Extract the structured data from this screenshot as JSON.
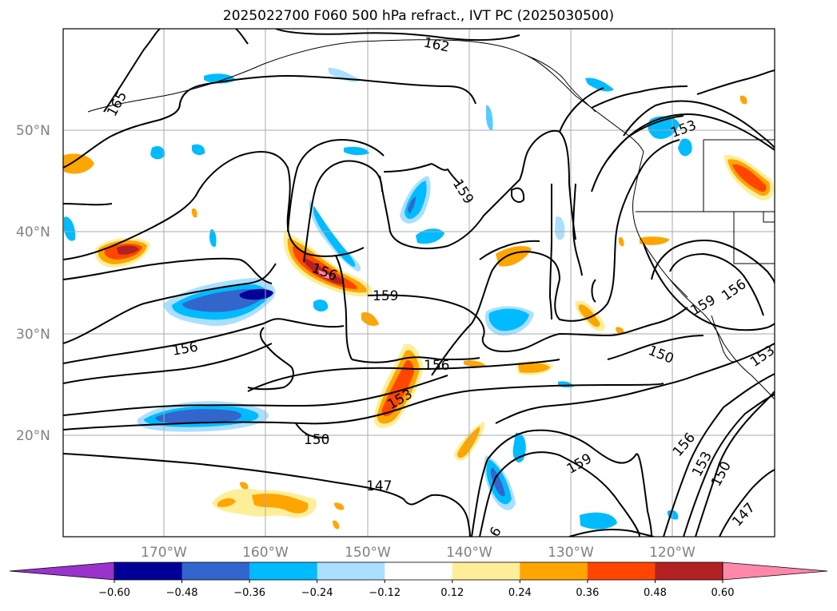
{
  "title": "2025022700 F060 500 hPa refract., IVT PC (2025030500)",
  "map": {
    "lat_labels": [
      "50°N",
      "40°N",
      "30°N",
      "20°N"
    ],
    "lon_labels": [
      "170°W",
      "160°W",
      "150°W",
      "140°W",
      "130°W",
      "120°W"
    ],
    "contour_labels": [
      {
        "text": "162"
      },
      {
        "text": "165"
      },
      {
        "text": "159"
      },
      {
        "text": "153"
      },
      {
        "text": "156"
      },
      {
        "text": "159"
      },
      {
        "text": "156"
      },
      {
        "text": "156"
      },
      {
        "text": "153"
      },
      {
        "text": "150"
      },
      {
        "text": "159"
      },
      {
        "text": "156"
      },
      {
        "text": "150"
      },
      {
        "text": "147"
      },
      {
        "text": "159"
      },
      {
        "text": "156"
      },
      {
        "text": "153"
      },
      {
        "text": "150"
      },
      {
        "text": "147"
      },
      {
        "text": "153"
      },
      {
        "text": "6"
      }
    ]
  },
  "colorbar": {
    "ticks": [
      "−0.60",
      "−0.48",
      "−0.36",
      "−0.24",
      "−0.12",
      "0.12",
      "0.24",
      "0.36",
      "0.48",
      "0.60"
    ],
    "colors": [
      "#9933cc",
      "#000099",
      "#3366cc",
      "#00bbff",
      "#aadfff",
      "#ffffff",
      "#ffee99",
      "#ffa500",
      "#ff4500",
      "#b22222",
      "#ff88aa"
    ]
  },
  "colors": {
    "neg_strong": "#000099",
    "neg_mid": "#3366cc",
    "neg_light": "#00bbff",
    "neg_pale": "#aadfff",
    "pos_pale": "#ffee99",
    "pos_light": "#ffa500",
    "pos_mid": "#ff4500",
    "pos_strong": "#b22222",
    "grid": "#aaaaaa",
    "contour": "#000000"
  }
}
